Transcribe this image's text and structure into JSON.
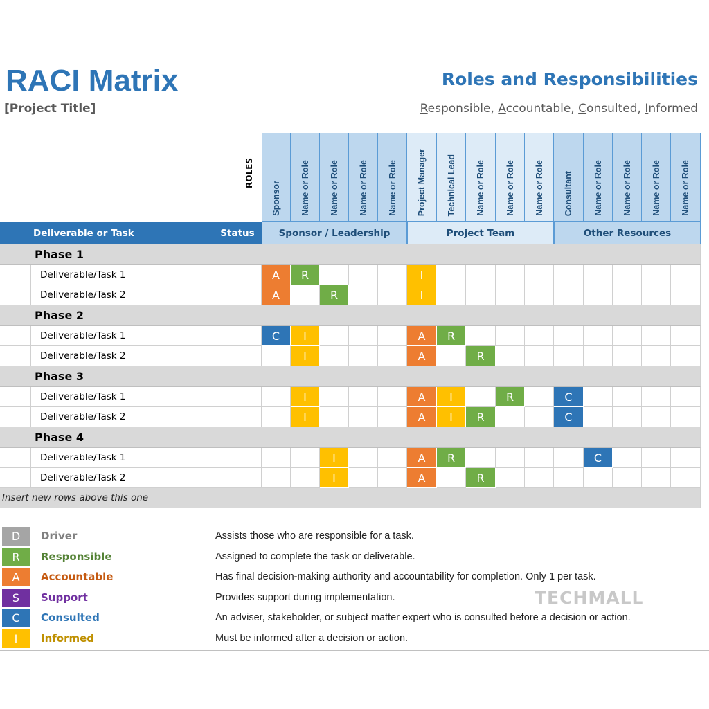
{
  "header": {
    "title": "RACI Matrix",
    "project_title": "[Project Title]",
    "subtitle": "Roles and Responsibilities",
    "raci_line": [
      {
        "first": "R",
        "rest": "esponsible, "
      },
      {
        "first": "A",
        "rest": "ccountable, "
      },
      {
        "first": "C",
        "rest": "onsulted, "
      },
      {
        "first": "I",
        "rest": "nformed"
      }
    ]
  },
  "roles_label": "ROLES",
  "columns": {
    "task": "Deliverable or Task",
    "status": "Status"
  },
  "roles": [
    "Sponsor",
    "Name or Role",
    "Name or Role",
    "Name or Role",
    "Name or Role",
    "Project Manager",
    "Technical Lead",
    "Name or Role",
    "Name or Role",
    "Name or Role",
    "Consultant",
    "Name or Role",
    "Name or Role",
    "Name or Role",
    "Name or Role"
  ],
  "groups": [
    "Sponsor / Leadership",
    "Project Team",
    "Other Resources"
  ],
  "phases": [
    {
      "name": "Phase 1",
      "tasks": [
        {
          "name": "Deliverable/Task 1",
          "status": "",
          "codes": {
            "0": "A",
            "1": "R",
            "5": "I"
          }
        },
        {
          "name": "Deliverable/Task 2",
          "status": "",
          "codes": {
            "0": "A",
            "2": "R",
            "5": "I"
          }
        }
      ]
    },
    {
      "name": "Phase 2",
      "tasks": [
        {
          "name": "Deliverable/Task 1",
          "status": "",
          "codes": {
            "0": "C",
            "1": "I",
            "5": "A",
            "6": "R"
          }
        },
        {
          "name": "Deliverable/Task 2",
          "status": "",
          "codes": {
            "1": "I",
            "5": "A",
            "7": "R"
          }
        }
      ]
    },
    {
      "name": "Phase 3",
      "tasks": [
        {
          "name": "Deliverable/Task 1",
          "status": "",
          "codes": {
            "1": "I",
            "5": "A",
            "6": "I",
            "8": "R",
            "10": "C"
          }
        },
        {
          "name": "Deliverable/Task 2",
          "status": "",
          "codes": {
            "1": "I",
            "5": "A",
            "6": "I",
            "7": "R",
            "10": "C"
          }
        }
      ]
    },
    {
      "name": "Phase 4",
      "tasks": [
        {
          "name": "Deliverable/Task 1",
          "status": "",
          "codes": {
            "2": "I",
            "5": "A",
            "6": "R",
            "11": "C"
          }
        },
        {
          "name": "Deliverable/Task 2",
          "status": "",
          "codes": {
            "2": "I",
            "5": "A",
            "7": "R"
          }
        }
      ]
    }
  ],
  "insert_note": "Insert new rows above this one",
  "colors": {
    "D": "#a5a5a5",
    "R": "#70ad47",
    "A": "#ed7d31",
    "S": "#7030a0",
    "C": "#2e75b6",
    "I": "#ffc000"
  },
  "legend": [
    {
      "code": "D",
      "name": "Driver",
      "text_color": "#808080",
      "desc": "Assists those who are responsible for a task."
    },
    {
      "code": "R",
      "name": "Responsible",
      "text_color": "#548235",
      "desc": "Assigned to complete the task or deliverable."
    },
    {
      "code": "A",
      "name": "Accountable",
      "text_color": "#c55a11",
      "desc": "Has final decision-making authority and accountability for completion. Only 1 per task."
    },
    {
      "code": "S",
      "name": "Support",
      "text_color": "#7030a0",
      "desc": "Provides support during implementation."
    },
    {
      "code": "C",
      "name": "Consulted",
      "text_color": "#2e75b6",
      "desc": "An adviser, stakeholder, or subject matter expert who is consulted before a decision or action."
    },
    {
      "code": "I",
      "name": "Informed",
      "text_color": "#bf9000",
      "desc": "Must be informed after a decision or action."
    }
  ],
  "watermark": "TECHMALL"
}
